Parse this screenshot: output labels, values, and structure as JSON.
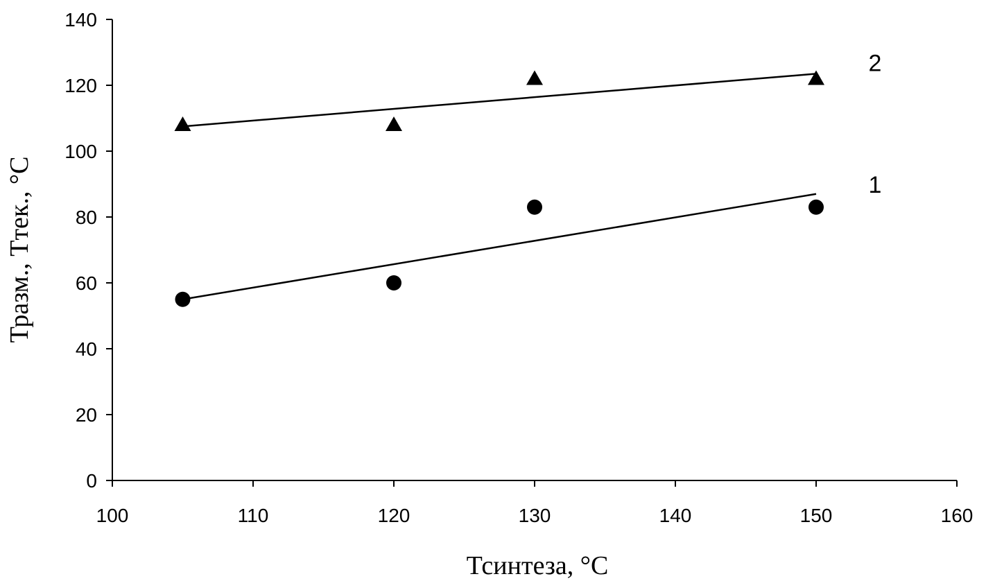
{
  "chart_data": {
    "type": "scatter",
    "xlabel": "Тсинтеза, °С",
    "ylabel": "Тразм., Ттек., °С",
    "xlim": [
      100,
      160
    ],
    "ylim": [
      0,
      140
    ],
    "xticks": [
      100,
      110,
      120,
      130,
      140,
      150,
      160
    ],
    "yticks": [
      0,
      20,
      40,
      60,
      80,
      100,
      120,
      140
    ],
    "grid": false,
    "series": [
      {
        "label": "1",
        "marker": "circle",
        "points": [
          [
            105,
            55
          ],
          [
            120,
            60
          ],
          [
            130,
            83
          ],
          [
            150,
            83
          ]
        ],
        "trendline": [
          [
            105,
            55
          ],
          [
            150,
            87
          ]
        ]
      },
      {
        "label": "2",
        "marker": "triangle",
        "points": [
          [
            105,
            108
          ],
          [
            120,
            108
          ],
          [
            130,
            122
          ],
          [
            150,
            122
          ]
        ],
        "trendline": [
          [
            105,
            107.5
          ],
          [
            150,
            123.5
          ]
        ]
      }
    ]
  }
}
